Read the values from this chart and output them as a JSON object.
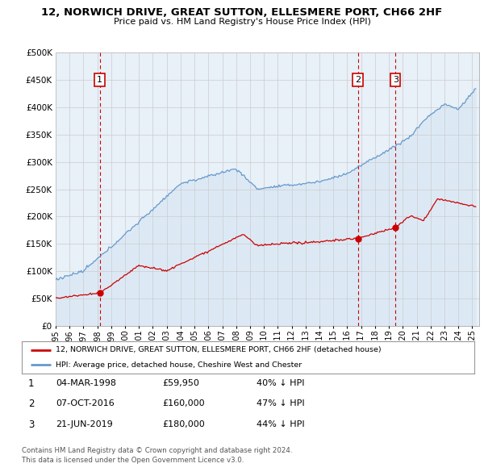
{
  "title": "12, NORWICH DRIVE, GREAT SUTTON, ELLESMERE PORT, CH66 2HF",
  "subtitle": "Price paid vs. HM Land Registry's House Price Index (HPI)",
  "ylim": [
    0,
    500000
  ],
  "yticks": [
    0,
    50000,
    100000,
    150000,
    200000,
    250000,
    300000,
    350000,
    400000,
    450000,
    500000
  ],
  "xlim_start": 1995.0,
  "xlim_end": 2025.5,
  "sale_dates_num": [
    1998.17,
    2016.77,
    2019.47
  ],
  "sale_prices": [
    59950,
    160000,
    180000
  ],
  "sale_labels": [
    "1",
    "2",
    "3"
  ],
  "legend_red": "12, NORWICH DRIVE, GREAT SUTTON, ELLESMERE PORT, CH66 2HF (detached house)",
  "legend_blue": "HPI: Average price, detached house, Cheshire West and Chester",
  "table_rows": [
    [
      "1",
      "04-MAR-1998",
      "£59,950",
      "40% ↓ HPI"
    ],
    [
      "2",
      "07-OCT-2016",
      "£160,000",
      "47% ↓ HPI"
    ],
    [
      "3",
      "21-JUN-2019",
      "£180,000",
      "44% ↓ HPI"
    ]
  ],
  "footer1": "Contains HM Land Registry data © Crown copyright and database right 2024.",
  "footer2": "This data is licensed under the Open Government Licence v3.0.",
  "red_color": "#cc0000",
  "blue_color": "#6699cc",
  "blue_fill": "#dce9f5",
  "grid_color": "#cccccc",
  "sale_vline_color": "#cc0000",
  "background_color": "#ffffff",
  "chart_bg": "#e8f0f8"
}
